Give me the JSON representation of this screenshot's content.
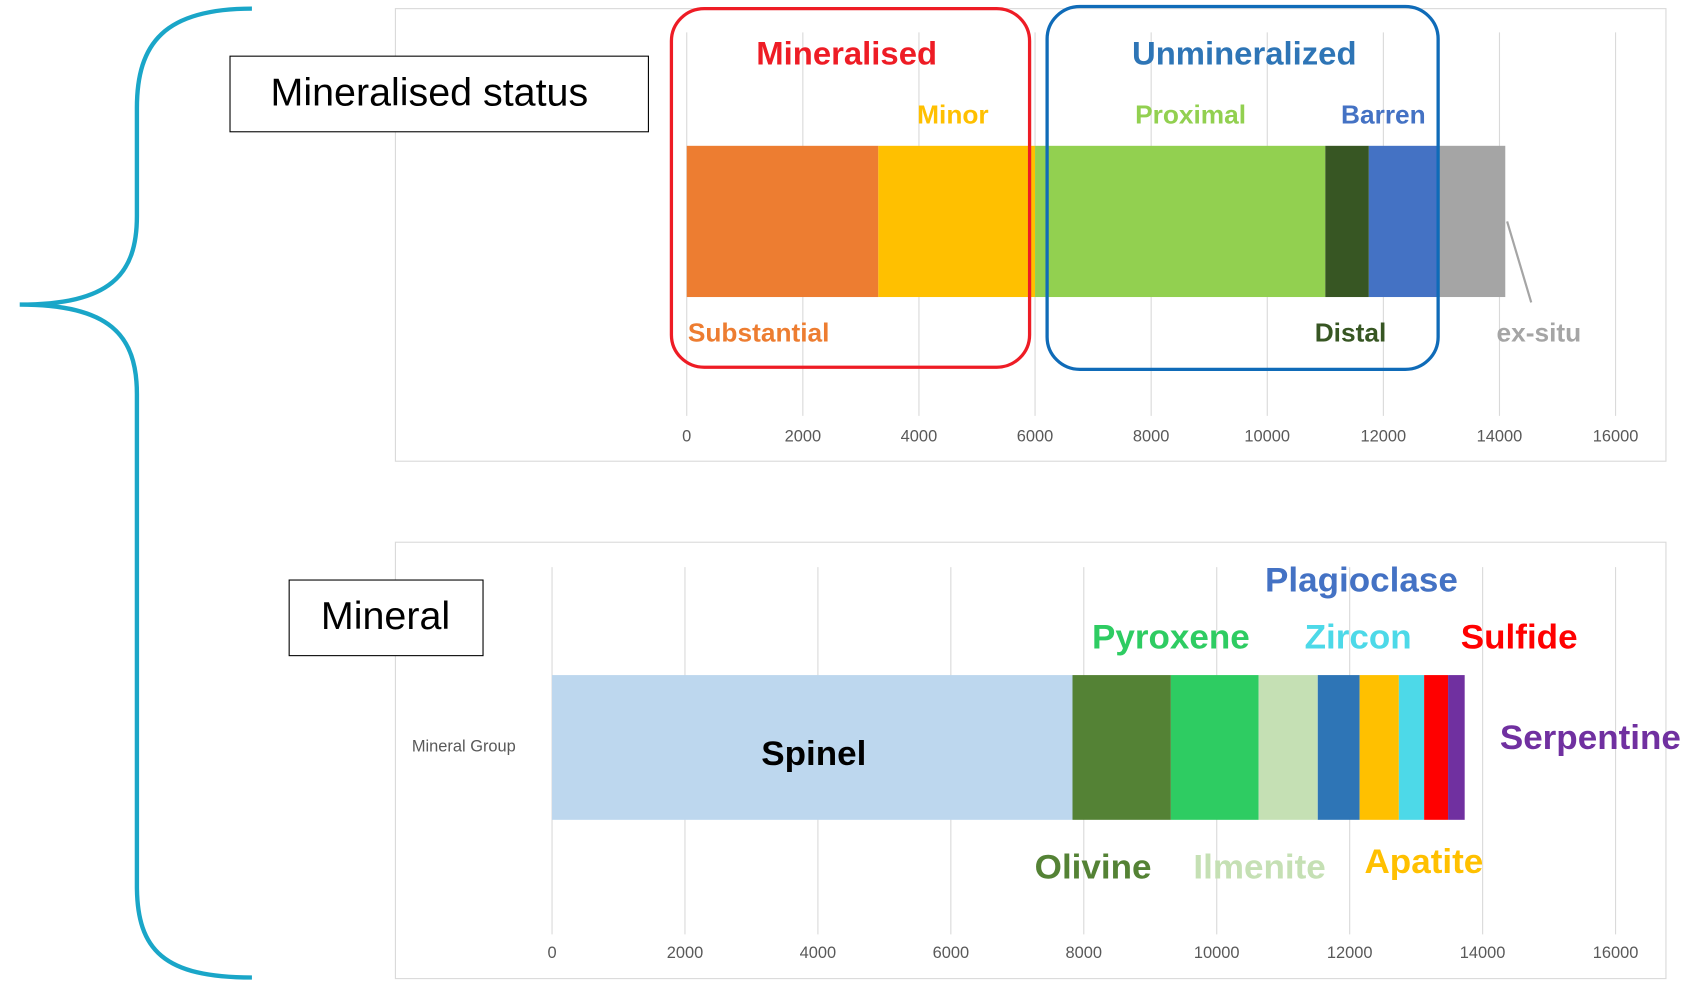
{
  "chart_data": [
    {
      "type": "stacked-bar-horizontal",
      "title": "Mineralised status",
      "annotations": [
        "Mineralised",
        "Unmineralized"
      ],
      "categories": [
        null
      ],
      "series": [
        {
          "name": "Substantial",
          "color": "#ed7d31",
          "values": [
            3300
          ]
        },
        {
          "name": "Minor",
          "color": "#ffc000",
          "values": [
            2700
          ]
        },
        {
          "name": "Proximal",
          "color": "#92d050",
          "values": [
            5000
          ]
        },
        {
          "name": "Distal",
          "color": "#375623",
          "values": [
            750
          ]
        },
        {
          "name": "Barren",
          "color": "#4472c4",
          "values": [
            1200
          ]
        },
        {
          "name": "ex-situ",
          "color": "#a5a5a5",
          "values": [
            1150
          ]
        }
      ],
      "xlim": [
        0,
        16000
      ],
      "xticks": [
        0,
        2000,
        4000,
        6000,
        8000,
        10000,
        12000,
        14000,
        16000
      ],
      "grid": true
    },
    {
      "type": "stacked-bar-horizontal",
      "title": "Mineral",
      "categories": [
        "Mineral Group"
      ],
      "series": [
        {
          "name": "Spinel",
          "color": "#bdd7ee",
          "values": [
            7830
          ]
        },
        {
          "name": "Olivine",
          "color": "#548235",
          "values": [
            1480
          ]
        },
        {
          "name": "Pyroxene",
          "color": "#2ecc62",
          "values": [
            1320
          ]
        },
        {
          "name": "Ilmenite",
          "color": "#c5e0b4",
          "values": [
            890
          ]
        },
        {
          "name": "Plagioclase",
          "color": "#2e75b6",
          "values": [
            630
          ]
        },
        {
          "name": "Apatite",
          "color": "#ffc000",
          "values": [
            590
          ]
        },
        {
          "name": "Zircon",
          "color": "#4dd9e8",
          "values": [
            380
          ]
        },
        {
          "name": "Sulfide",
          "color": "#ff0000",
          "values": [
            360
          ]
        },
        {
          "name": "Serpentine",
          "color": "#7030a0",
          "values": [
            250
          ]
        }
      ],
      "xlim": [
        0,
        16000
      ],
      "xticks": [
        0,
        2000,
        4000,
        6000,
        8000,
        10000,
        12000,
        14000,
        16000
      ],
      "grid": true
    }
  ]
}
